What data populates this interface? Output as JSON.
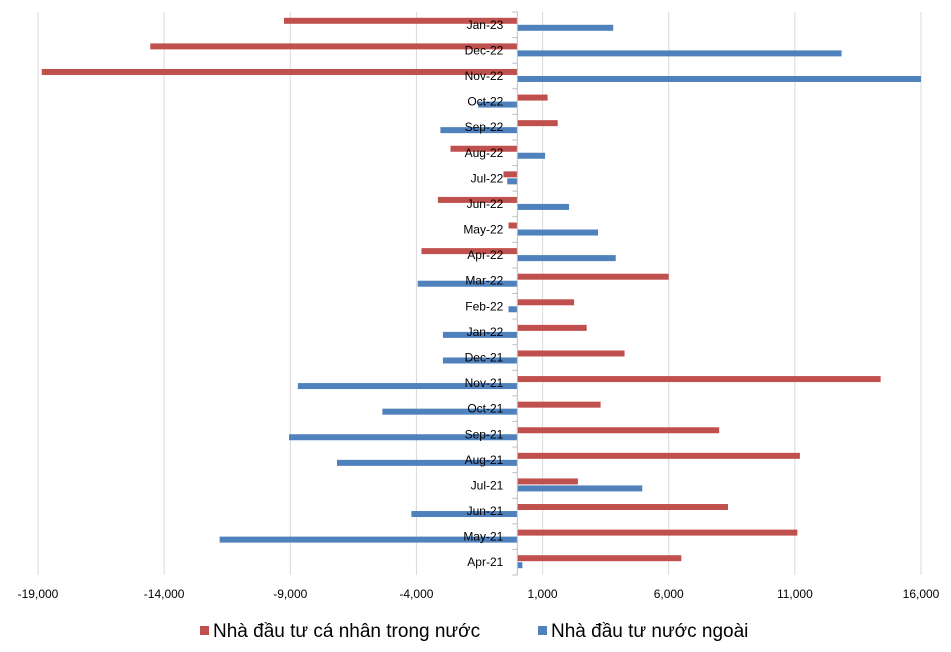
{
  "chart_data": {
    "type": "bar",
    "orientation": "horizontal",
    "title": "",
    "xlabel": "",
    "ylabel": "",
    "xlim": [
      -19000,
      16000
    ],
    "x_ticks": [
      -19000,
      -14000,
      -9000,
      -4000,
      1000,
      6000,
      11000,
      16000
    ],
    "x_tick_labels": [
      "-19,000",
      "-14,000",
      "-9,000",
      "-4,000",
      "1,000",
      "6,000",
      "11,000",
      "16,000"
    ],
    "grid": "vertical",
    "legend_position": "bottom",
    "categories": [
      "Apr-21",
      "May-21",
      "Jun-21",
      "Jul-21",
      "Aug-21",
      "Sep-21",
      "Oct-21",
      "Nov-21",
      "Dec-21",
      "Jan-22",
      "Feb-22",
      "Mar-22",
      "Apr-22",
      "May-22",
      "Jun-22",
      "Jul-22",
      "Aug-22",
      "Sep-22",
      "Oct-22",
      "Nov-22",
      "Dec-22",
      "Jan-23"
    ],
    "series": [
      {
        "name": "Nhà đầu tư cá nhân trong nước",
        "color": "#C0504D",
        "values": [
          6500,
          11100,
          8350,
          2400,
          11200,
          8000,
          3300,
          14400,
          4250,
          2750,
          2250,
          6000,
          -3800,
          -350,
          -3150,
          -550,
          -2650,
          1600,
          1200,
          -18850,
          -14550,
          -9250
        ]
      },
      {
        "name": "Nhà đầu tư nước ngoài",
        "color": "#4F81BD",
        "values": [
          200,
          -11800,
          -4200,
          4950,
          -7150,
          -9050,
          -5350,
          -8700,
          -2950,
          -2950,
          -350,
          -3950,
          3900,
          3200,
          2050,
          -400,
          1100,
          -3050,
          -1550,
          16000,
          12850,
          3800
        ]
      }
    ]
  }
}
